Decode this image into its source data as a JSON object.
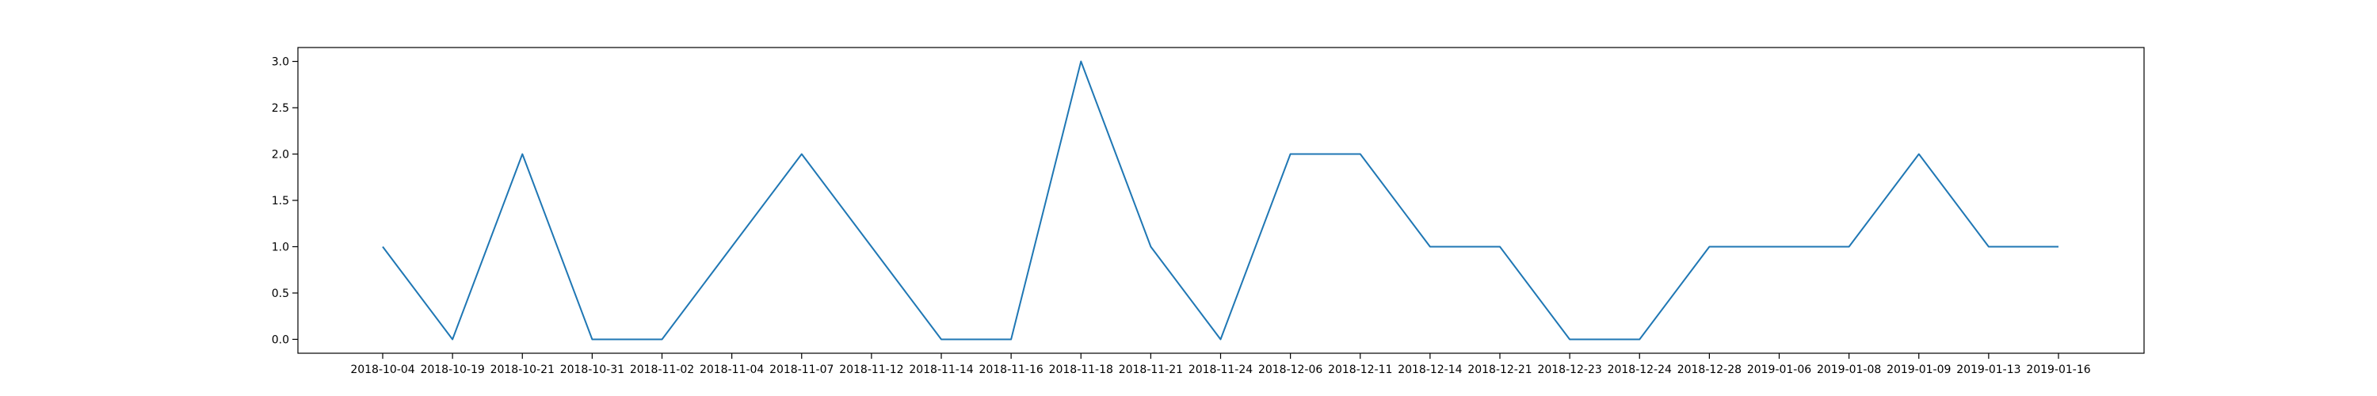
{
  "chart_data": {
    "type": "line",
    "title": "",
    "xlabel": "",
    "ylabel": "",
    "categories": [
      "2018-10-04",
      "2018-10-19",
      "2018-10-21",
      "2018-10-31",
      "2018-11-02",
      "2018-11-04",
      "2018-11-07",
      "2018-11-12",
      "2018-11-14",
      "2018-11-16",
      "2018-11-18",
      "2018-11-21",
      "2018-11-24",
      "2018-12-06",
      "2018-12-11",
      "2018-12-14",
      "2018-12-21",
      "2018-12-23",
      "2018-12-24",
      "2018-12-28",
      "2019-01-06",
      "2019-01-08",
      "2019-01-09",
      "2019-01-13",
      "2019-01-16"
    ],
    "series": [
      {
        "values": [
          1,
          0,
          2,
          0,
          0,
          1,
          2,
          1,
          0,
          0,
          3,
          1,
          0,
          2,
          2,
          1,
          1,
          0,
          0,
          1,
          1,
          1,
          2,
          1,
          1
        ],
        "color": "#1f77b4"
      }
    ],
    "yticks": [
      "0.0",
      "0.5",
      "1.0",
      "1.5",
      "2.0",
      "2.5",
      "3.0"
    ],
    "ylim": [
      -0.15,
      3.15
    ],
    "grid": false,
    "legend": "none"
  }
}
